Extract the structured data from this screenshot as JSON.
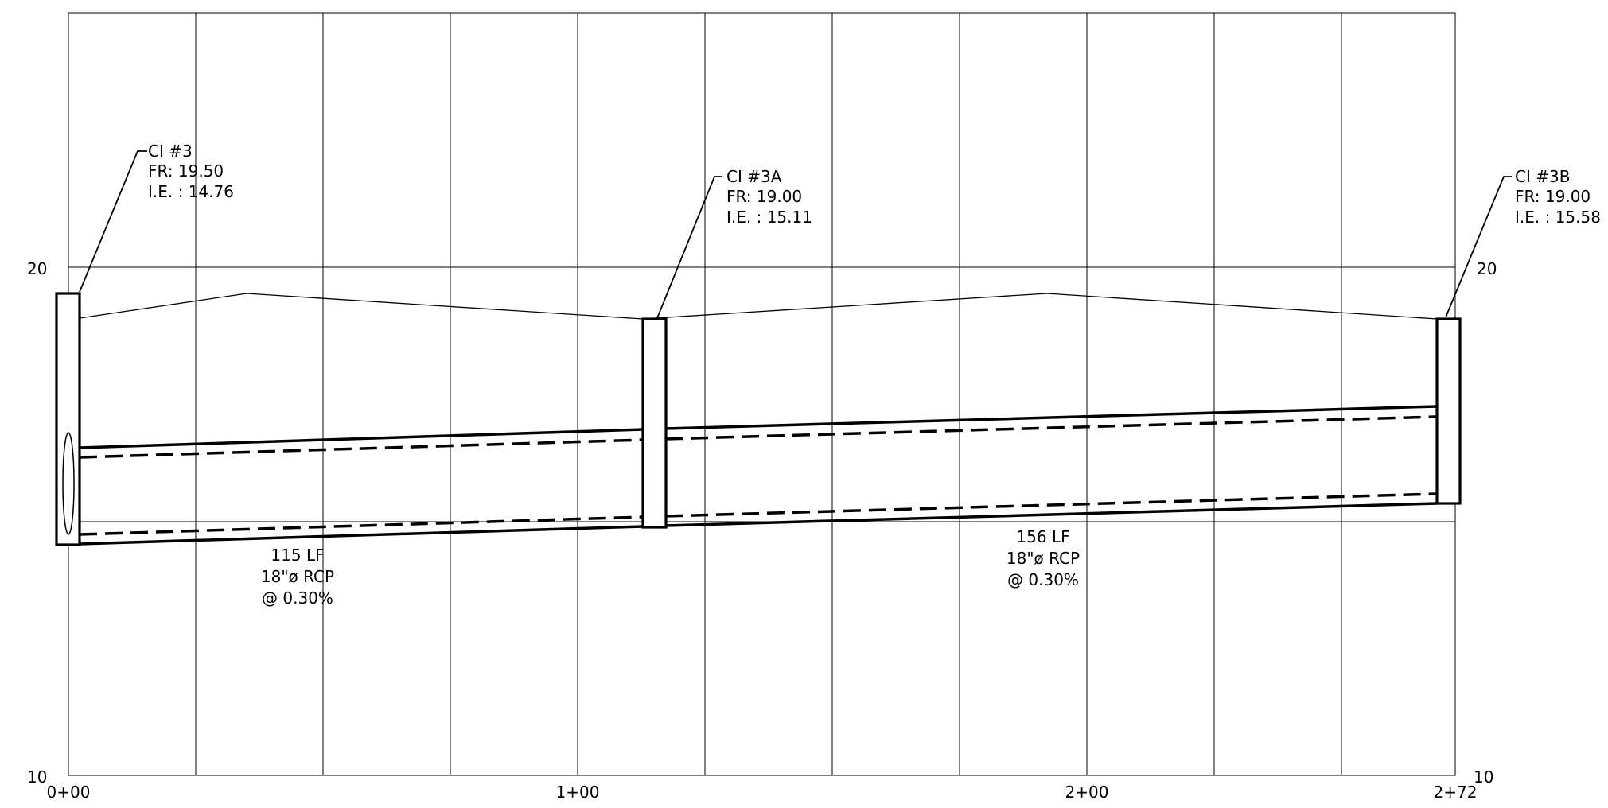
{
  "axis": {
    "elev_top": "20",
    "elev_bottom": "10",
    "stations": [
      "0+00",
      "1+00",
      "2+00",
      "2+72"
    ]
  },
  "structures": [
    {
      "name": "CI #3",
      "fr": "FR: 19.50",
      "ie": "I.E. : 14.76"
    },
    {
      "name": "CI #3A",
      "fr": "FR: 19.00",
      "ie": "I.E. : 15.11"
    },
    {
      "name": "CI #3B",
      "fr": "FR: 19.00",
      "ie": "I.E. : 15.58"
    }
  ],
  "pipes": [
    {
      "length": "115 LF",
      "size": "18\"ø RCP",
      "slope": "@ 0.30%"
    },
    {
      "length": "156 LF",
      "size": "18\"ø RCP",
      "slope": "@ 0.30%"
    }
  ]
}
